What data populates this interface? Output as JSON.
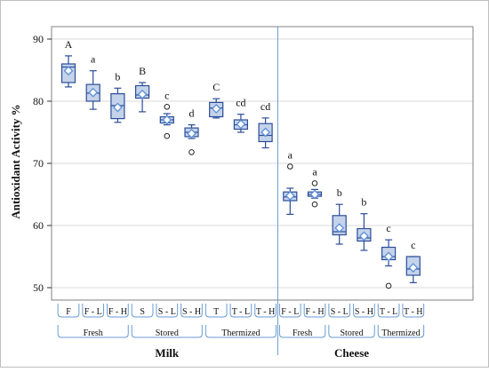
{
  "chart_data": {
    "type": "boxplot",
    "ylabel": "Antioxidant Activity %",
    "ylim": [
      48,
      92
    ],
    "yticks": [
      50,
      60,
      70,
      80,
      90
    ],
    "grid": true,
    "colors": {
      "box_fill": "#c5d3ea",
      "box_stroke": "#2b4c9a",
      "mean_marker": "#5b8fd6",
      "grid": "#d9d9d9",
      "frame": "#808080",
      "divider": "#6b9bd1"
    },
    "categories": [
      "F",
      "F - L",
      "F - H",
      "S",
      "S - L",
      "S - H",
      "T",
      "T - L",
      "T - H",
      "F - L",
      "F - H",
      "S - L",
      "S - H",
      "T - L",
      "T - H"
    ],
    "boxes": [
      {
        "min": 82.3,
        "q1": 83.0,
        "median": 85.5,
        "q3": 86.0,
        "max": 87.3,
        "mean": 84.9,
        "outliers": [],
        "letter": "A"
      },
      {
        "min": 78.7,
        "q1": 80.0,
        "median": 81.3,
        "q3": 82.7,
        "max": 84.9,
        "mean": 81.4,
        "outliers": [],
        "letter": "a"
      },
      {
        "min": 76.6,
        "q1": 77.2,
        "median": 79.3,
        "q3": 81.2,
        "max": 82.1,
        "mean": 79.0,
        "outliers": [],
        "letter": "b"
      },
      {
        "min": 78.3,
        "q1": 80.5,
        "median": 81.0,
        "q3": 82.5,
        "max": 83.0,
        "mean": 81.1,
        "outliers": [],
        "letter": "B"
      },
      {
        "min": 76.2,
        "q1": 76.5,
        "median": 77.0,
        "q3": 77.5,
        "max": 78.0,
        "mean": 77.0,
        "outliers": [
          79.1,
          74.4
        ],
        "letter": "c"
      },
      {
        "min": 74.0,
        "q1": 74.3,
        "median": 75.0,
        "q3": 75.7,
        "max": 76.2,
        "mean": 74.8,
        "outliers": [
          71.8
        ],
        "letter": "d"
      },
      {
        "min": 77.3,
        "q1": 77.5,
        "median": 78.9,
        "q3": 79.8,
        "max": 80.4,
        "mean": 78.8,
        "outliers": [],
        "letter": "C"
      },
      {
        "min": 75.0,
        "q1": 75.5,
        "median": 76.2,
        "q3": 77.0,
        "max": 77.9,
        "mean": 76.3,
        "outliers": [],
        "letter": "cd"
      },
      {
        "min": 72.5,
        "q1": 73.5,
        "median": 74.5,
        "q3": 76.4,
        "max": 77.3,
        "mean": 75.0,
        "outliers": [],
        "letter": "cd"
      },
      {
        "min": 61.8,
        "q1": 64.0,
        "median": 64.6,
        "q3": 65.4,
        "max": 66.0,
        "mean": 64.8,
        "outliers": [
          69.5
        ],
        "letter": "a"
      },
      {
        "min": 64.4,
        "q1": 64.7,
        "median": 65.0,
        "q3": 65.4,
        "max": 65.8,
        "mean": 65.0,
        "outliers": [
          66.8,
          63.4
        ],
        "letter": "a"
      },
      {
        "min": 57.0,
        "q1": 58.5,
        "median": 59.0,
        "q3": 61.6,
        "max": 63.4,
        "mean": 59.6,
        "outliers": [],
        "letter": "b"
      },
      {
        "min": 56.0,
        "q1": 57.5,
        "median": 58.0,
        "q3": 59.5,
        "max": 61.9,
        "mean": 58.3,
        "outliers": [],
        "letter": "b"
      },
      {
        "min": 53.5,
        "q1": 54.5,
        "median": 55.0,
        "q3": 56.5,
        "max": 57.7,
        "mean": 55.0,
        "outliers": [
          50.3
        ],
        "letter": "c"
      },
      {
        "min": 50.8,
        "q1": 52.0,
        "median": 53.0,
        "q3": 55.0,
        "max": 55.0,
        "mean": 53.2,
        "outliers": [],
        "letter": "c"
      }
    ],
    "groups": [
      {
        "label": "Fresh",
        "from": 0,
        "to": 2
      },
      {
        "label": "Stored",
        "from": 3,
        "to": 5
      },
      {
        "label": "Thermized",
        "from": 6,
        "to": 8
      },
      {
        "label": "Fresh",
        "from": 9,
        "to": 10
      },
      {
        "label": "Stored",
        "from": 11,
        "to": 12
      },
      {
        "label": "Thermized",
        "from": 13,
        "to": 14
      }
    ],
    "supergroups": [
      {
        "label": "Milk",
        "from": 0,
        "to": 8
      },
      {
        "label": "Cheese",
        "from": 9,
        "to": 14
      }
    ]
  }
}
